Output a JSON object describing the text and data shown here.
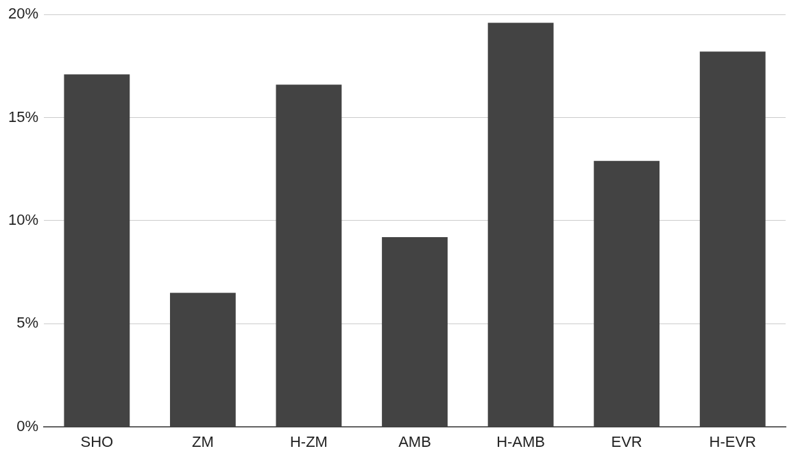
{
  "chart_data": {
    "type": "bar",
    "categories": [
      "SHO",
      "ZM",
      "H-ZM",
      "AMB",
      "H-AMB",
      "EVR",
      "H-EVR"
    ],
    "values": [
      17.1,
      6.5,
      16.6,
      9.2,
      19.6,
      12.9,
      18.2
    ],
    "color": "#434343",
    "ylim": [
      0,
      20
    ],
    "yticks": [
      {
        "value": 0,
        "label": "0%"
      },
      {
        "value": 5,
        "label": "5%"
      },
      {
        "value": 10,
        "label": "10%"
      },
      {
        "value": 15,
        "label": "15%"
      },
      {
        "value": 20,
        "label": "20%"
      }
    ],
    "grid": "y",
    "legend": false
  }
}
